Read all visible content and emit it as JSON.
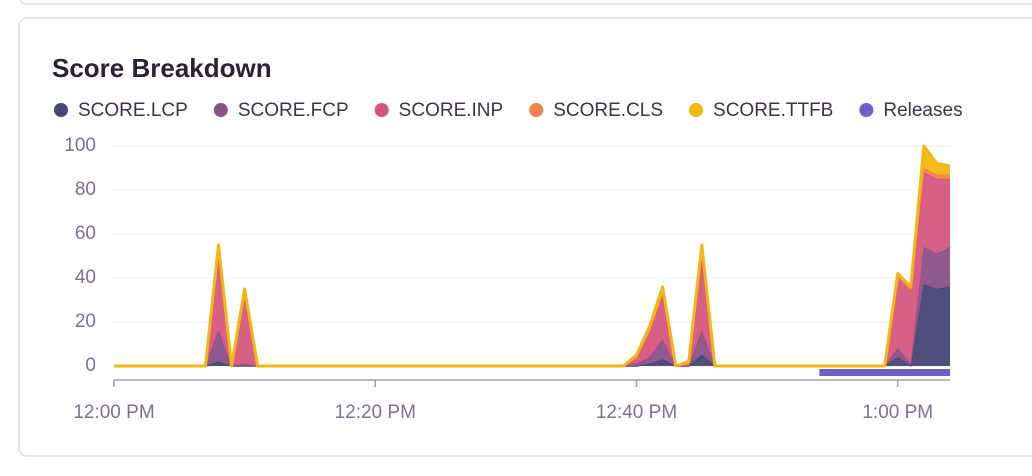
{
  "chart_data": {
    "type": "stacked-area",
    "title": "Score Breakdown",
    "x": [
      "12:00 PM",
      "12:07 PM",
      "12:08 PM",
      "12:09 PM",
      "12:10 PM",
      "12:11 PM",
      "12:39 PM",
      "12:40 PM",
      "12:41 PM",
      "12:42 PM",
      "12:43 PM",
      "12:44 PM",
      "12:45 PM",
      "12:46 PM",
      "12:59 PM",
      "1:00 PM",
      "1:01 PM",
      "1:02 PM",
      "1:03 PM",
      "1:04 PM"
    ],
    "series": [
      {
        "name": "SCORE.LCP",
        "color": "#444674",
        "values": [
          0,
          0,
          2,
          0,
          0,
          0,
          0,
          0,
          1,
          3,
          0,
          0,
          5,
          0,
          0,
          4,
          0,
          37,
          35,
          36
        ]
      },
      {
        "name": "SCORE.FCP",
        "color": "#895289",
        "values": [
          0,
          0,
          14,
          0,
          1,
          0,
          0,
          1,
          3,
          9,
          0,
          0,
          11,
          0,
          0,
          4,
          1,
          17,
          16,
          18
        ]
      },
      {
        "name": "SCORE.INP",
        "color": "#d6567f",
        "values": [
          0,
          0,
          35,
          0,
          31,
          0,
          0,
          2,
          11,
          20,
          0,
          1,
          33,
          0,
          0,
          32,
          33,
          34,
          34,
          31
        ]
      },
      {
        "name": "SCORE.CLS",
        "color": "#f38150",
        "values": [
          0,
          0,
          1,
          0,
          1,
          0,
          0,
          1,
          1,
          1,
          0,
          0,
          2,
          0,
          0,
          1,
          1,
          2,
          2,
          2
        ]
      },
      {
        "name": "SCORE.TTFB",
        "color": "#f2b712",
        "values": [
          0,
          0,
          3,
          0,
          2,
          0,
          0,
          1,
          2,
          3,
          0,
          1,
          4,
          0,
          0,
          1,
          1,
          10,
          5,
          4
        ]
      }
    ],
    "releases": {
      "name": "Releases",
      "color": "#6c5fc7",
      "start": "12:54 PM",
      "end": "1:04 PM"
    },
    "xlim": [
      "12:00 PM",
      "1:04 PM"
    ],
    "xticks": [
      "12:00 PM",
      "12:20 PM",
      "12:40 PM",
      "1:00 PM"
    ],
    "ylim": [
      0,
      100
    ],
    "yticks": [
      0,
      20,
      40,
      60,
      80,
      100
    ],
    "grid": true
  }
}
